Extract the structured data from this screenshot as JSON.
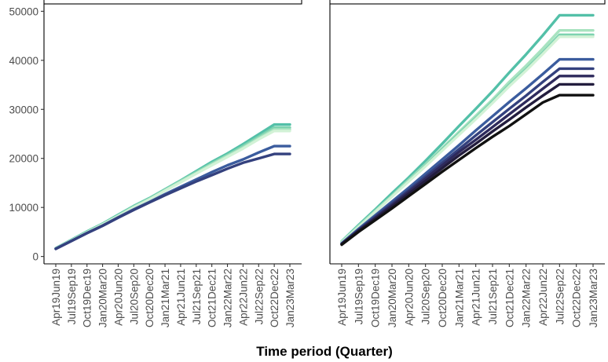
{
  "chart_data": {
    "type": "line",
    "xlabel": "Time period (Quarter)",
    "ylabel": "",
    "ylim": [
      -1500,
      51500
    ],
    "y_ticks": [
      0,
      10000,
      20000,
      30000,
      40000,
      50000
    ],
    "y_tick_labels": [
      "0",
      "10000",
      "20000",
      "30000",
      "40000",
      "50000"
    ],
    "x_categories": [
      "Apr19Jun19",
      "Jul19Sep19",
      "Oct19Dec19",
      "Jan20Mar20",
      "Apr20Jun20",
      "Jul20Sep20",
      "Oct20Dec20",
      "Jan21Mar21",
      "Apr21Jun21",
      "Jul21Sep21",
      "Oct21Dec21",
      "Jan22Mar22",
      "Apr22Jun22",
      "Jul22Sep22",
      "Oct22Dec22",
      "Jan23Mar23"
    ],
    "grid": false,
    "legend": "none",
    "panels": [
      {
        "strip_label": "",
        "series": [
          {
            "color": "#53c0a8",
            "values": [
              1700,
              3400,
              5100,
              6700,
              8500,
              10300,
              11900,
              13700,
              15500,
              17400,
              19300,
              21000,
              22900,
              24900,
              26900,
              26900
            ]
          },
          {
            "color": "#7dd3b0",
            "values": [
              1650,
              3300,
              5000,
              6600,
              8400,
              10200,
              11800,
              13600,
              15400,
              17200,
              19000,
              20700,
              22500,
              24400,
              26300,
              26300
            ]
          },
          {
            "color": "#a8e3c0",
            "values": [
              1650,
              3300,
              4950,
              6550,
              8300,
              10100,
              11700,
              13500,
              15300,
              17000,
              18800,
              20500,
              22200,
              24100,
              25900,
              25900
            ]
          },
          {
            "color": "#d2f2d6",
            "values": [
              1600,
              3250,
              4900,
              6500,
              8200,
              10000,
              11600,
              13400,
              15100,
              16900,
              18600,
              20300,
              22000,
              23900,
              25600,
              25600
            ]
          },
          {
            "color": "#3b5c9e",
            "values": [
              1600,
              3200,
              4800,
              6300,
              8000,
              9600,
              11100,
              12700,
              14200,
              15700,
              17200,
              18600,
              19800,
              21200,
              22500,
              22500
            ]
          },
          {
            "color": "#34417e",
            "values": [
              1550,
              3150,
              4750,
              6250,
              7900,
              9500,
              11000,
              12500,
              13900,
              15300,
              16600,
              17900,
              19100,
              20000,
              20900,
              20900
            ]
          }
        ]
      },
      {
        "strip_label": "",
        "series": [
          {
            "color": "#53c0a8",
            "values": [
              3100,
              6400,
              9600,
              12900,
              16100,
              19500,
              23000,
              26600,
              30100,
              33700,
              37500,
              41200,
              45100,
              49200,
              49200,
              49200
            ]
          },
          {
            "color": "#a8e3c0",
            "values": [
              3000,
              6200,
              9300,
              12400,
              15600,
              18800,
              22100,
              25400,
              28700,
              32000,
              35600,
              38900,
              42400,
              46100,
              46100,
              46100
            ]
          },
          {
            "color": "#7dd3b0",
            "values": [
              2950,
              6100,
              9200,
              12300,
              15400,
              18600,
              21900,
              25100,
              28300,
              31600,
              35000,
              38200,
              41600,
              45200,
              45200,
              45200
            ]
          },
          {
            "color": "#d2f2d6",
            "values": [
              2900,
              6000,
              9100,
              12200,
              15300,
              18400,
              21600,
              24800,
              28000,
              31300,
              34700,
              37900,
              41300,
              44800,
              44800,
              44800
            ]
          },
          {
            "color": "#3b5c9e",
            "values": [
              2700,
              5600,
              8400,
              11200,
              14000,
              16900,
              19800,
              22700,
              25700,
              28600,
              31500,
              34300,
              37200,
              40200,
              40200,
              40200
            ]
          },
          {
            "color": "#34417e",
            "values": [
              2600,
              5400,
              8100,
              10800,
              13500,
              16300,
              19100,
              21900,
              24700,
              27400,
              30100,
              32800,
              35600,
              38300,
              38300,
              38300
            ]
          },
          {
            "color": "#2e2a5c",
            "values": [
              2550,
              5300,
              7900,
              10500,
              13200,
              15900,
              18600,
              21300,
              23800,
              26400,
              29000,
              31600,
              34200,
              36800,
              36800,
              36800
            ]
          },
          {
            "color": "#231d3e",
            "values": [
              2500,
              5200,
              7700,
              10200,
              12800,
              15400,
              18000,
              20600,
              23000,
              25500,
              27900,
              30400,
              32800,
              35100,
              35100,
              35100
            ]
          },
          {
            "color": "#111111",
            "values": [
              2400,
              5000,
              7400,
              9800,
              12300,
              14800,
              17300,
              19700,
              22100,
              24400,
              26600,
              29000,
              31400,
              32900,
              32900,
              32900
            ]
          }
        ]
      }
    ]
  }
}
